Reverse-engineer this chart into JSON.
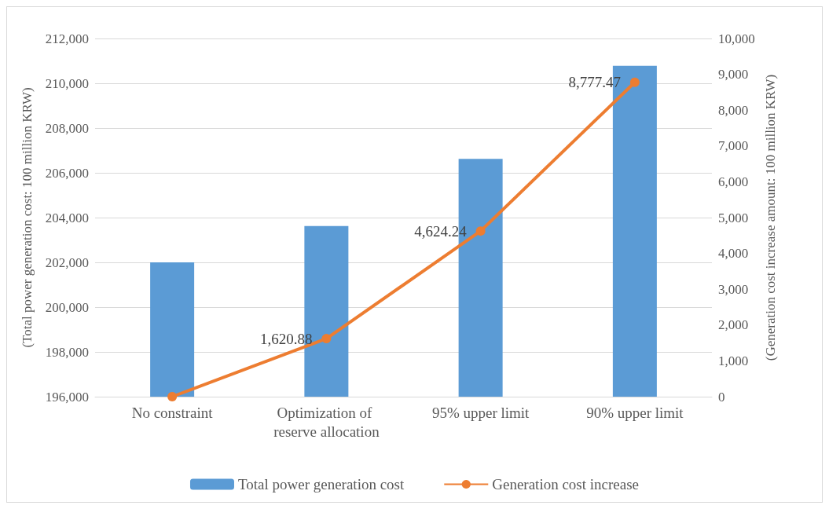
{
  "chart_data": {
    "type": "bar",
    "ylabel": "(Total power generation cost: 100 million KRW)",
    "y2label": "(Generation cost increase amount: 100 million KRW)",
    "categories": [
      "No constraint",
      "Optimization of reserve allocation",
      "95% upper limit",
      "90% upper limit"
    ],
    "series": [
      {
        "name": "Total power generation cost",
        "color": "#5b9bd5",
        "values": [
          202000,
          203620,
          206620,
          210780
        ]
      },
      {
        "name": "Generation cost increase",
        "type": "line",
        "axis": "y2",
        "color": "#ed7d31",
        "marker": "circle",
        "values": [
          0,
          1620.88,
          4624.24,
          8777.47
        ],
        "value_labels": [
          null,
          "1,620.88",
          "4,624.24",
          "8,777.47"
        ]
      }
    ],
    "ylim": [
      196000,
      212000
    ],
    "yticks": [
      {
        "value": 196000,
        "label": "196,000"
      },
      {
        "value": 198000,
        "label": "198,000"
      },
      {
        "value": 200000,
        "label": "200,000"
      },
      {
        "value": 202000,
        "label": "202,000"
      },
      {
        "value": 204000,
        "label": "204,000"
      },
      {
        "value": 206000,
        "label": "206,000"
      },
      {
        "value": 208000,
        "label": "208,000"
      },
      {
        "value": 210000,
        "label": "210,000"
      },
      {
        "value": 212000,
        "label": "212,000"
      }
    ],
    "y2lim": [
      0,
      10000
    ],
    "y2ticks": [
      0,
      {
        "value": 1000,
        "label": "1,000"
      },
      {
        "value": 2000,
        "label": "2,000"
      },
      {
        "value": 3000,
        "label": "3,000"
      },
      {
        "value": 4000,
        "label": "4,000"
      },
      {
        "value": 5000,
        "label": "5,000"
      },
      {
        "value": 6000,
        "label": "6,000"
      },
      {
        "value": 7000,
        "label": "7,000"
      },
      {
        "value": 8000,
        "label": "8,000"
      },
      {
        "value": 9000,
        "label": "9,000"
      },
      {
        "value": 10000,
        "label": "10,000"
      }
    ],
    "grid": "y",
    "legend": "bottom"
  }
}
